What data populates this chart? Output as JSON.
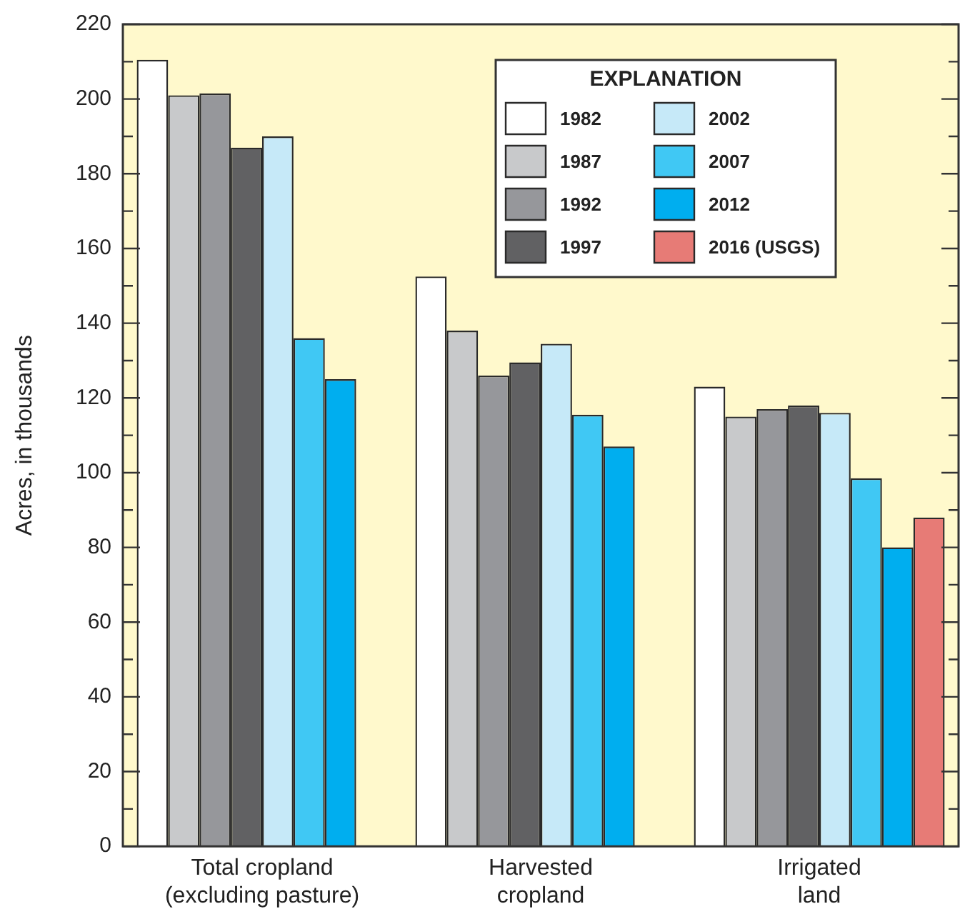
{
  "chart_data": {
    "type": "bar",
    "ylabel": "Acres, in thousands",
    "legend_title": "EXPLANATION",
    "legend": "top right",
    "categories": [
      "Total cropland\n(excluding pasture)",
      "Harvested\ncropland",
      "Irrigated\nland"
    ],
    "series": [
      {
        "name": "1982",
        "color": "#ffffff",
        "values": [
          210.5,
          152.5,
          123
        ]
      },
      {
        "name": "1987",
        "color": "#c8c9cb",
        "values": [
          201,
          138,
          115
        ]
      },
      {
        "name": "1992",
        "color": "#96979b",
        "values": [
          201.5,
          126,
          117
        ]
      },
      {
        "name": "1997",
        "color": "#616163",
        "values": [
          187,
          129.5,
          118
        ]
      },
      {
        "name": "2002",
        "color": "#c6e9f8",
        "values": [
          190,
          134.5,
          116
        ]
      },
      {
        "name": "2007",
        "color": "#40c8f4",
        "values": [
          136,
          115.5,
          98.5
        ]
      },
      {
        "name": "2012",
        "color": "#00aeef",
        "values": [
          125,
          107,
          80
        ]
      },
      {
        "name": "2016 (USGS)",
        "color": "#e77b76",
        "values": [
          null,
          null,
          88
        ]
      }
    ],
    "ylim": [
      0,
      220
    ],
    "yticks": [
      0,
      {
        "value": 10,
        "label": null
      },
      20,
      {
        "value": 30,
        "label": null
      },
      40,
      {
        "value": 50,
        "label": null
      },
      60,
      {
        "value": 70,
        "label": null
      },
      80,
      {
        "value": 90,
        "label": null
      },
      100,
      {
        "value": 110,
        "label": null
      },
      120,
      {
        "value": 130,
        "label": null
      },
      140,
      {
        "value": 150,
        "label": null
      },
      160,
      {
        "value": 170,
        "label": null
      },
      180,
      {
        "value": 190,
        "label": null
      },
      200,
      {
        "value": 210,
        "label": null
      },
      220
    ]
  }
}
